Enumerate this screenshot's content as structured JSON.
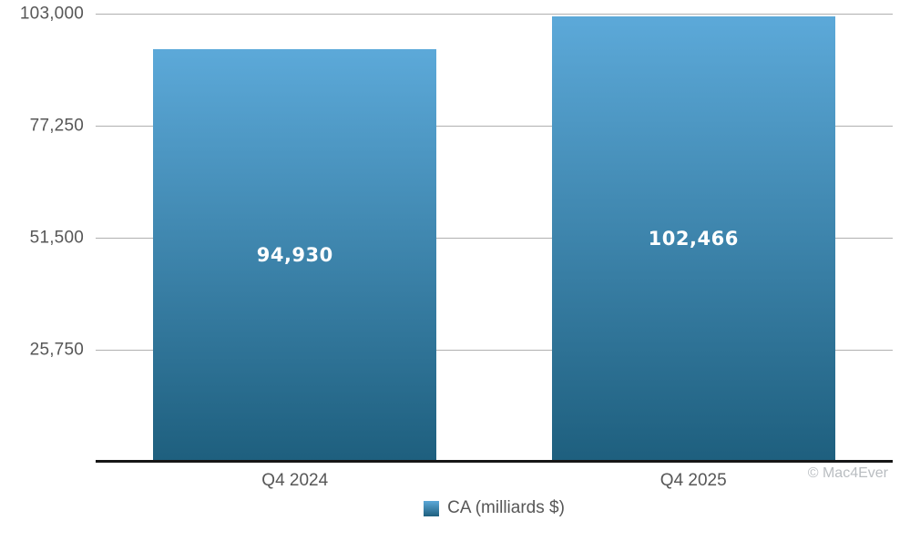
{
  "chart_data": {
    "type": "bar",
    "title": "",
    "categories": [
      "Q4 2024",
      "Q4 2025"
    ],
    "series": [
      {
        "name": "CA (milliards $)",
        "values": [
          94930,
          102466
        ]
      }
    ],
    "value_labels": [
      "94,930",
      "102,466"
    ],
    "ytick_values": [
      25750,
      51500,
      77250,
      103000
    ],
    "ytick_labels": [
      "25,750",
      "51,500",
      "77,250",
      "103,000"
    ],
    "ylim": [
      0,
      103000
    ],
    "grid": "horizontal",
    "legend": {
      "label": "CA (milliards $)",
      "position": "bottom-center"
    },
    "colors": {
      "bar_gradient_top": "#5ca9d9",
      "bar_gradient_bottom": "#1e5f7e",
      "gridline": "#b0b0b0",
      "axis_line": "#161616",
      "tick_label": "#575757",
      "value_label": "#ffffff",
      "legend_label": "#575757",
      "watermark": "#b9bdc1",
      "background": "#ffffff"
    }
  },
  "watermark": "© Mac4Ever"
}
